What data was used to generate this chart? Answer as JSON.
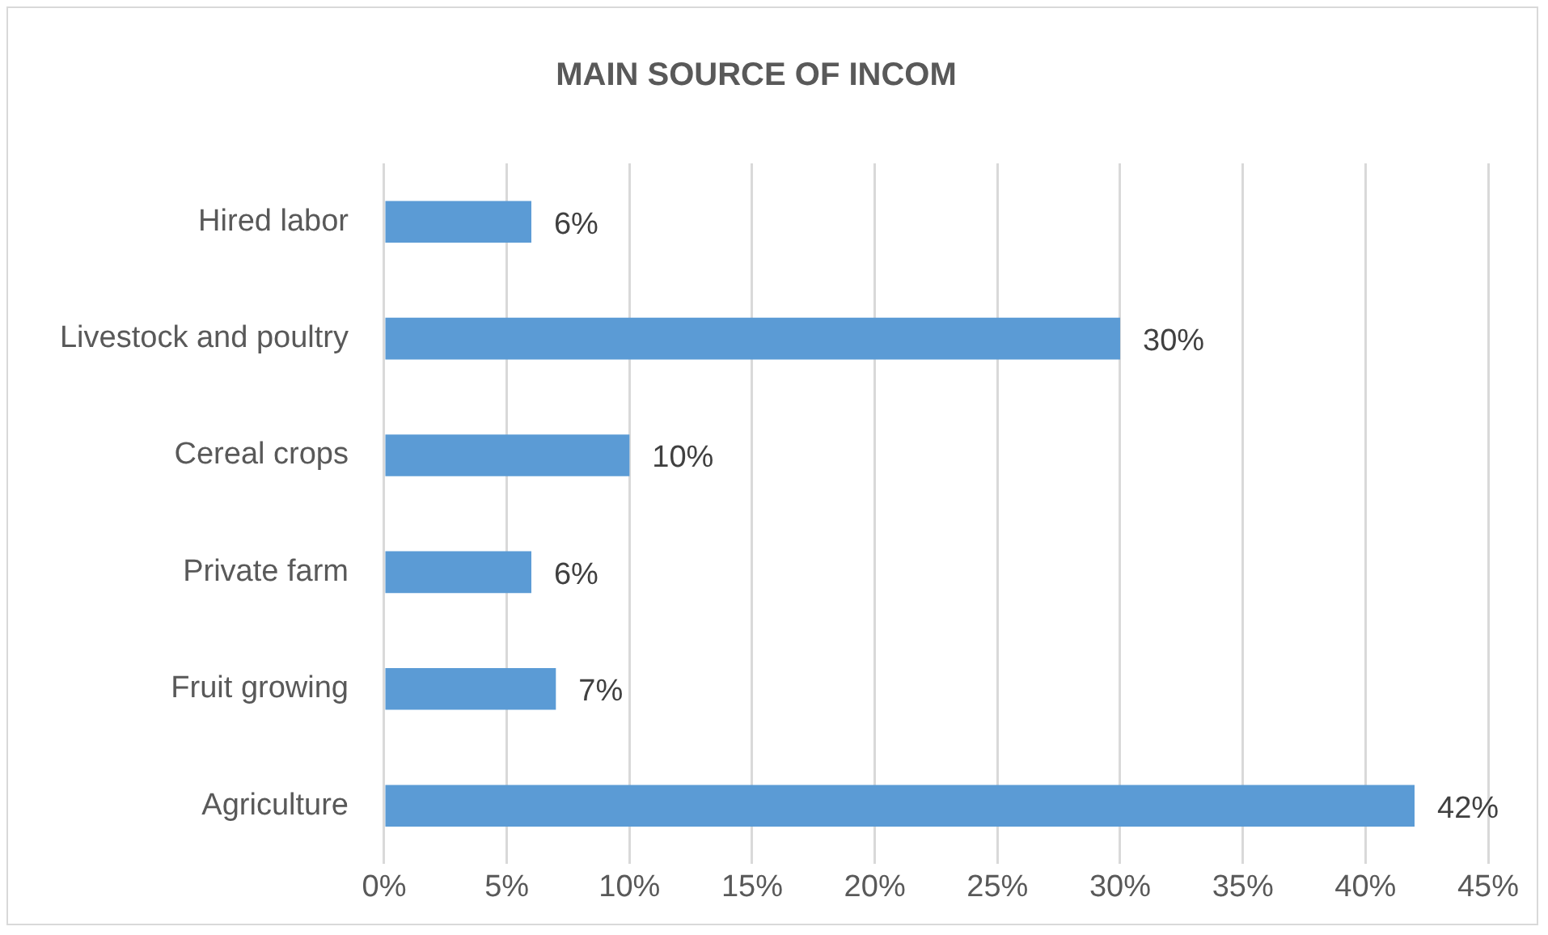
{
  "chart_data": {
    "type": "bar",
    "orientation": "horizontal",
    "title": "MAIN SOURCE OF INCOM",
    "categories": [
      "Hired labor",
      "Livestock and poultry",
      "Cereal crops",
      "Private farm",
      "Fruit growing",
      "Agriculture"
    ],
    "values": [
      6,
      30,
      10,
      6,
      7,
      42
    ],
    "value_labels": [
      "6%",
      "30%",
      "10%",
      "6%",
      "7%",
      "42%"
    ],
    "color": "#5b9bd5",
    "xlim": [
      0,
      45
    ],
    "xticks": [
      {
        "value": 0,
        "label": "0%"
      },
      {
        "value": 5,
        "label": "5%"
      },
      {
        "value": 10,
        "label": "10%"
      },
      {
        "value": 15,
        "label": "15%"
      },
      {
        "value": 20,
        "label": "20%"
      },
      {
        "value": 25,
        "label": "25%"
      },
      {
        "value": 30,
        "label": "30%"
      },
      {
        "value": 35,
        "label": "35%"
      },
      {
        "value": 40,
        "label": "40%"
      },
      {
        "value": 45,
        "label": "45%"
      }
    ],
    "grid": "x"
  }
}
